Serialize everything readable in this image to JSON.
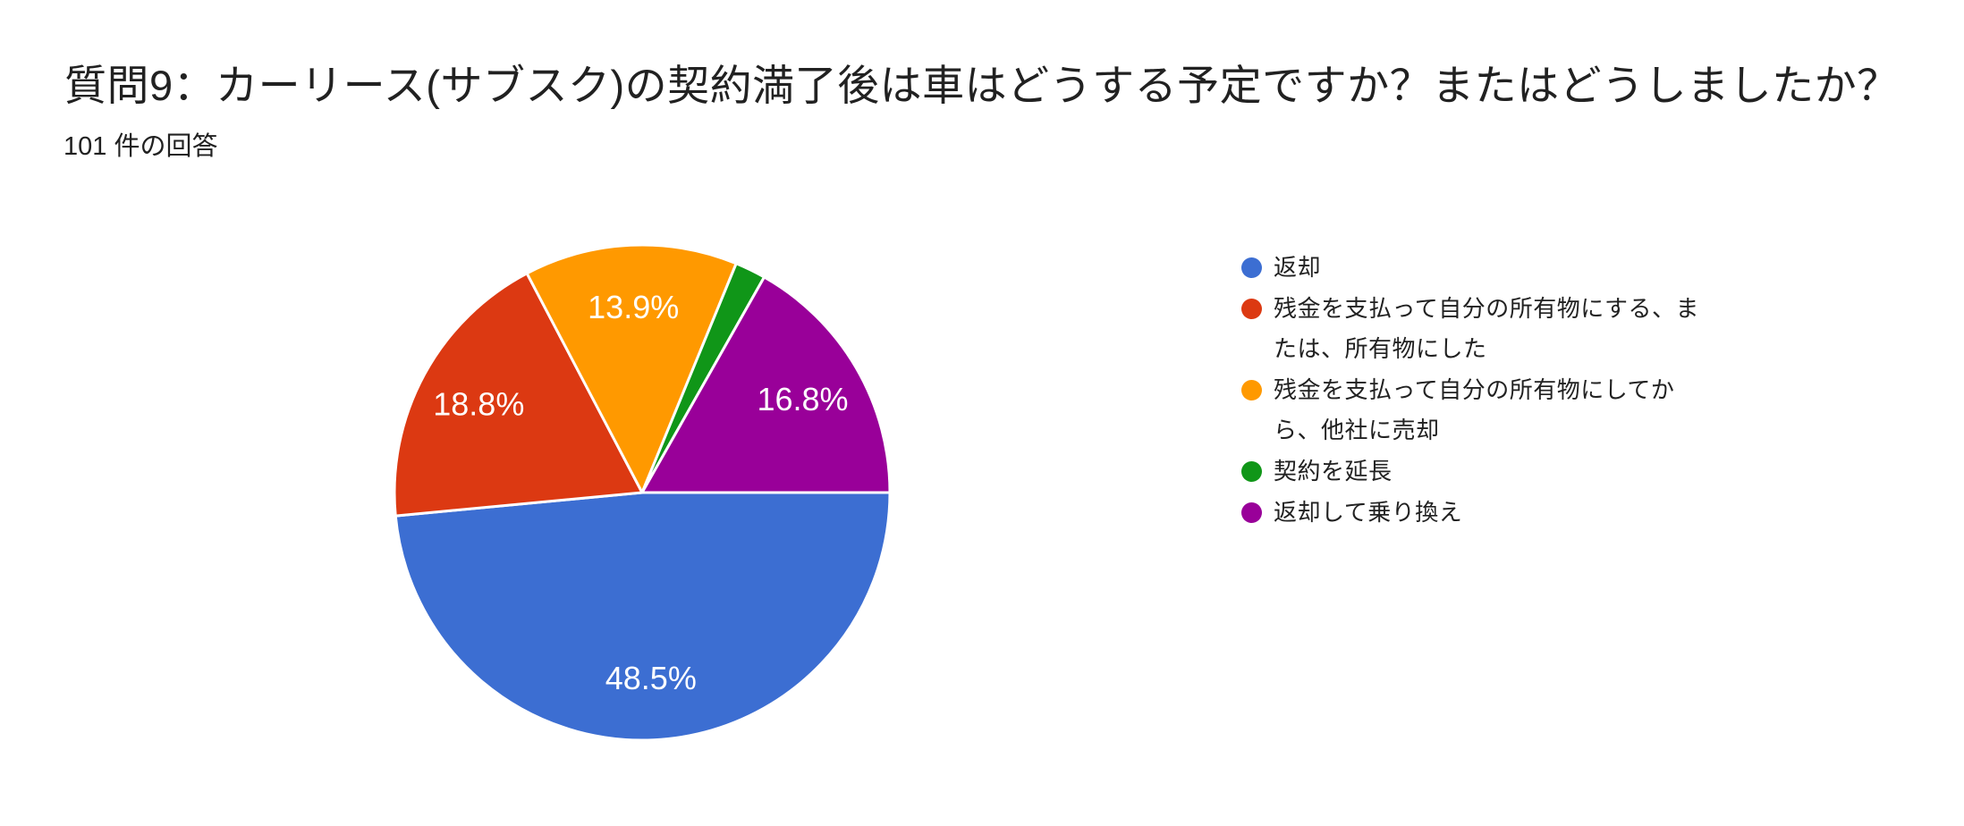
{
  "header": {
    "title": "質問9：カーリース(サブスク)の契約満了後は車はどうする予定ですか？またはどうしましたか？",
    "subtitle": "101 件の回答",
    "response_count": 101
  },
  "chart_data": {
    "type": "pie",
    "title": "質問9：カーリース(サブスク)の契約満了後は車はどうする予定ですか？またはどうしましたか？",
    "subtitle": "101 件の回答",
    "labels": [
      "返却",
      "残金を支払って自分の所有物にする、または、所有物にした",
      "残金を支払って自分の所有物にしてから、他社に売却",
      "契約を延長",
      "返却して乗り換え"
    ],
    "values_percent": [
      48.5,
      18.8,
      13.9,
      2.0,
      16.8
    ],
    "slice_labels": [
      "48.5%",
      "18.8%",
      "13.9%",
      "",
      "16.8%"
    ],
    "colors": [
      "#3C6ED2",
      "#DC3912",
      "#FF9900",
      "#109618",
      "#990099"
    ],
    "slice_border_color": "#ffffff",
    "slice_label_color": "#ffffff",
    "start_angle_deg": 90,
    "direction": "clockwise",
    "legend_position": "right",
    "grid": false
  },
  "legend": {
    "items": [
      {
        "lines": [
          "返却"
        ]
      },
      {
        "lines": [
          "残金を支払って自分の所有物にする、ま",
          "たは、所有物にした"
        ]
      },
      {
        "lines": [
          "残金を支払って自分の所有物にしてか",
          "ら、他社に売却"
        ]
      },
      {
        "lines": [
          "契約を延長"
        ]
      },
      {
        "lines": [
          "返却して乗り換え"
        ]
      }
    ]
  }
}
